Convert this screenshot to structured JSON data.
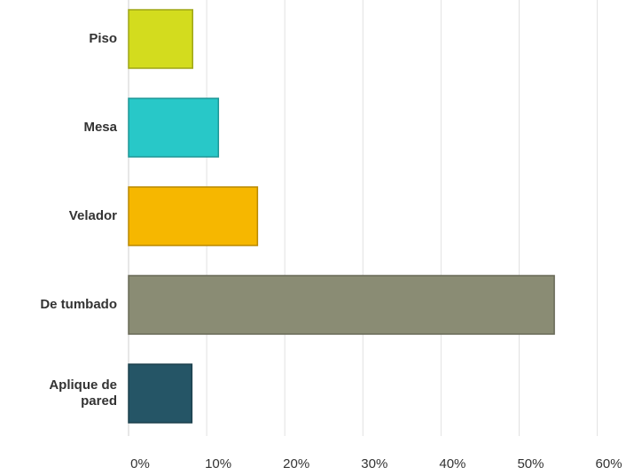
{
  "chart_data": {
    "type": "bar",
    "orientation": "horizontal",
    "categories": [
      "Piso",
      "Mesa",
      "Velador",
      "De tumbado",
      "Aplique de pared"
    ],
    "values": [
      8.2,
      11.5,
      16.5,
      54.5,
      8.1
    ],
    "colors": [
      "#d3dc1e",
      "#28c8c8",
      "#f6b700",
      "#8a8c74",
      "#255566"
    ],
    "xlim": [
      0,
      63
    ],
    "xticks": [
      {
        "value": 0,
        "label": "0%"
      },
      {
        "value": 10,
        "label": "10%"
      },
      {
        "value": 20,
        "label": "20%"
      },
      {
        "value": 30,
        "label": "30%"
      },
      {
        "value": 40,
        "label": "40%"
      },
      {
        "value": 50,
        "label": "50%"
      },
      {
        "value": 60,
        "label": "60%"
      }
    ],
    "grid": true
  }
}
